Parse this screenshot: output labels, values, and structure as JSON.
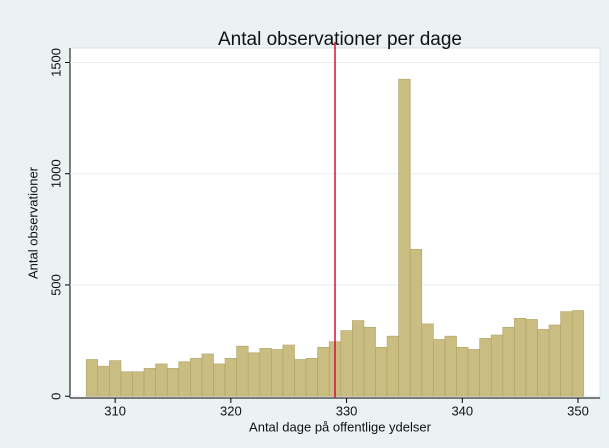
{
  "chart_data": {
    "type": "bar",
    "title": "Antal observationer per dage",
    "x_label": "Antal dage på offentlige ydelser",
    "y_label": "Antal observationer",
    "x": [
      308,
      309,
      310,
      311,
      312,
      313,
      314,
      315,
      316,
      317,
      318,
      319,
      320,
      321,
      322,
      323,
      324,
      325,
      326,
      327,
      328,
      329,
      330,
      331,
      332,
      333,
      334,
      335,
      336,
      337,
      338,
      339,
      340,
      341,
      342,
      343,
      344,
      345,
      346,
      347,
      348,
      349,
      350
    ],
    "values": [
      165,
      135,
      160,
      110,
      110,
      125,
      145,
      125,
      155,
      170,
      190,
      145,
      170,
      225,
      195,
      215,
      210,
      230,
      165,
      170,
      220,
      245,
      295,
      340,
      310,
      220,
      270,
      1425,
      660,
      325,
      255,
      270,
      220,
      210,
      260,
      275,
      310,
      350,
      345,
      300,
      320,
      380,
      385
    ],
    "color": "#c9bd82",
    "xlim": [
      306.1,
      351.9
    ],
    "ylim": [
      -8,
      1565
    ],
    "xticks": [
      310,
      320,
      330,
      340,
      350
    ],
    "yticks": [
      0,
      500,
      1000,
      1500
    ],
    "xline": 329,
    "xline_color": "#d0103a"
  }
}
